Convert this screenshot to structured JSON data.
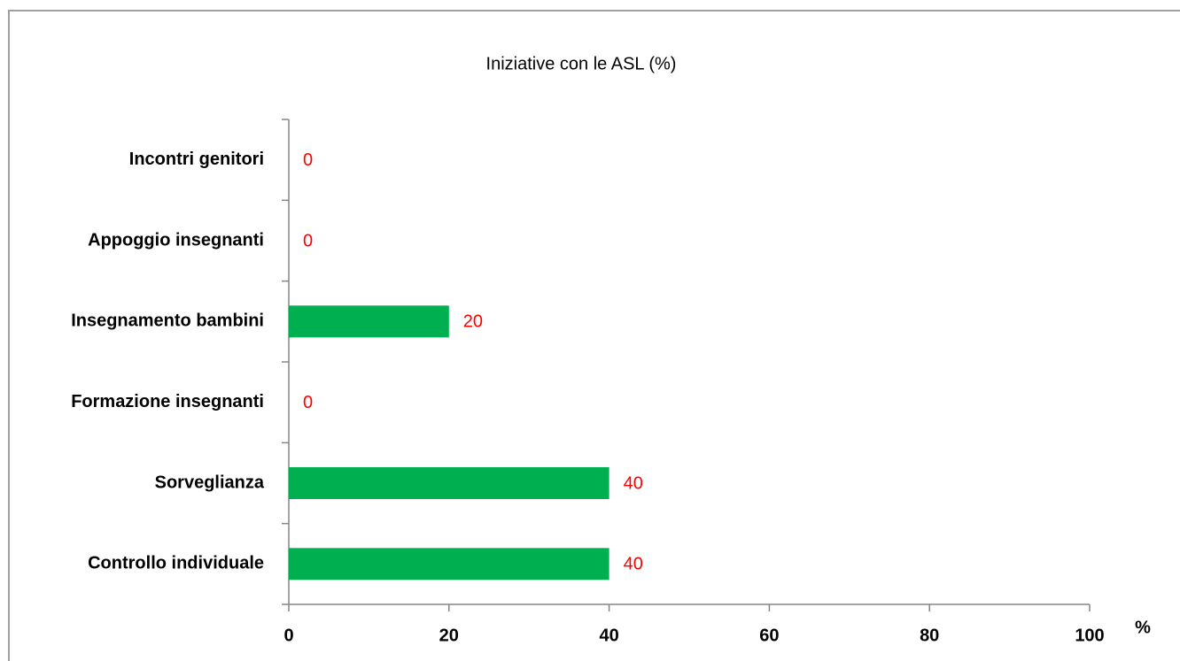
{
  "chart_data": {
    "type": "bar",
    "orientation": "horizontal",
    "title": "Iniziative con le ASL (%)",
    "categories": [
      "Incontri genitori",
      "Appoggio insegnanti",
      "Insegnamento bambini",
      "Formazione insegnanti",
      "Sorveglianza",
      "Controllo individuale"
    ],
    "values": [
      0,
      0,
      20,
      0,
      40,
      40
    ],
    "color": "#00b050",
    "value_label_color": "#ff0000",
    "x_label": "%",
    "xlim": [
      0,
      100
    ],
    "xticks": [
      0,
      20,
      40,
      60,
      80,
      100
    ],
    "grid": false
  }
}
